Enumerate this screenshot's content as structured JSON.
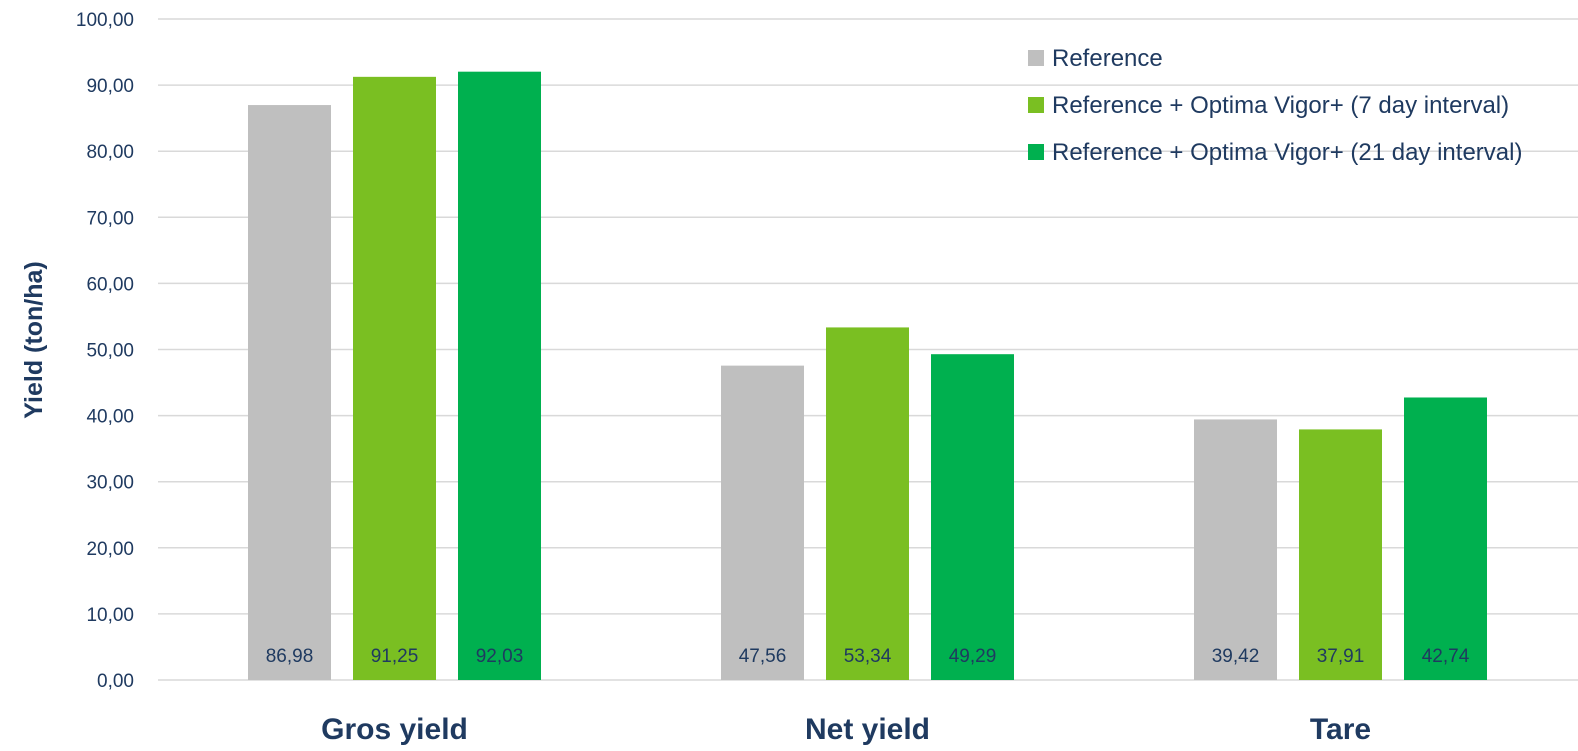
{
  "chart_data": {
    "type": "bar",
    "title": "",
    "xlabel": "",
    "ylabel": "Yield (ton/ha)",
    "ylim": [
      0,
      100
    ],
    "yticks": [
      "0,00",
      "10,00",
      "20,00",
      "30,00",
      "40,00",
      "50,00",
      "60,00",
      "70,00",
      "80,00",
      "90,00",
      "100,00"
    ],
    "categories": [
      "Gros yield",
      "Net yield",
      "Tare"
    ],
    "series": [
      {
        "name": "Reference",
        "color": "#bfbfbf",
        "values": [
          86.98,
          47.56,
          39.42
        ],
        "labels": [
          "86,98",
          "47,56",
          "39,42"
        ]
      },
      {
        "name": "Reference + Optima Vigor+ (7 day interval)",
        "color": "#7abf22",
        "values": [
          91.25,
          53.34,
          37.91
        ],
        "labels": [
          "91,25",
          "53,34",
          "37,91"
        ]
      },
      {
        "name": "Reference + Optima Vigor+ (21 day interval)",
        "color": "#00b04f",
        "values": [
          92.03,
          49.29,
          42.74
        ],
        "labels": [
          "92,03",
          "49,29",
          "42,74"
        ]
      }
    ],
    "grid": true,
    "legend_position": "top-right",
    "text_color": "#1f3a60",
    "grid_color": "#d9d9d9"
  }
}
